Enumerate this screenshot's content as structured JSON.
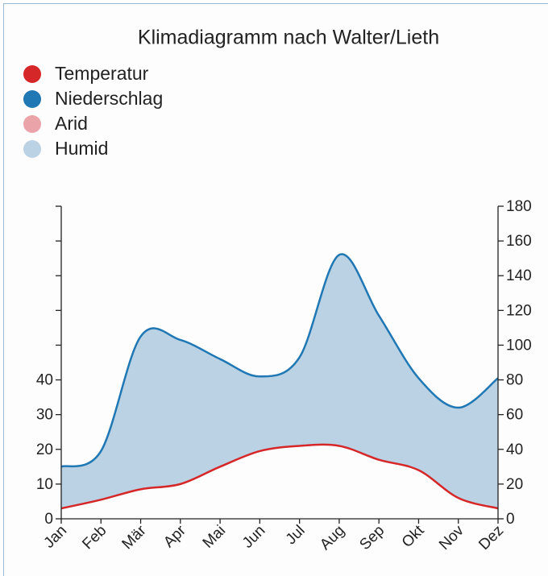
{
  "chart_data": {
    "type": "climate",
    "title": "Klimadiagramm nach Walter/Lieth",
    "categories": [
      "Jan",
      "Feb",
      "Mär",
      "Apr",
      "Mai",
      "Jun",
      "Jul",
      "Aug",
      "Sep",
      "Okt",
      "Nov",
      "Dez"
    ],
    "series": [
      {
        "name": "Temperatur",
        "color": "#d62728",
        "axis": "y",
        "values": [
          3,
          5.5,
          8.5,
          10,
          15,
          19.5,
          21,
          21,
          17,
          14,
          6,
          3
        ]
      },
      {
        "name": "Niederschlag",
        "color": "#1f77b4",
        "axis": "y2",
        "values": [
          30,
          39,
          105,
          103,
          92,
          82,
          93,
          152,
          117,
          81,
          64,
          81
        ]
      }
    ],
    "areas": [
      {
        "name": "Arid",
        "color": "#e8999e"
      },
      {
        "name": "Humid",
        "color": "#b3cde0"
      }
    ],
    "ylim": [
      0,
      90
    ],
    "yticks": [
      0,
      10,
      20,
      30,
      40,
      {
        "value": 50,
        "label": null
      },
      {
        "value": 60,
        "label": null
      },
      {
        "value": 70,
        "label": null
      },
      {
        "value": 80,
        "label": null
      },
      {
        "value": 90,
        "label": null
      }
    ],
    "y2lim": [
      0,
      180
    ],
    "y2ticks": [
      0,
      20,
      40,
      60,
      80,
      100,
      120,
      140,
      160,
      180
    ]
  }
}
